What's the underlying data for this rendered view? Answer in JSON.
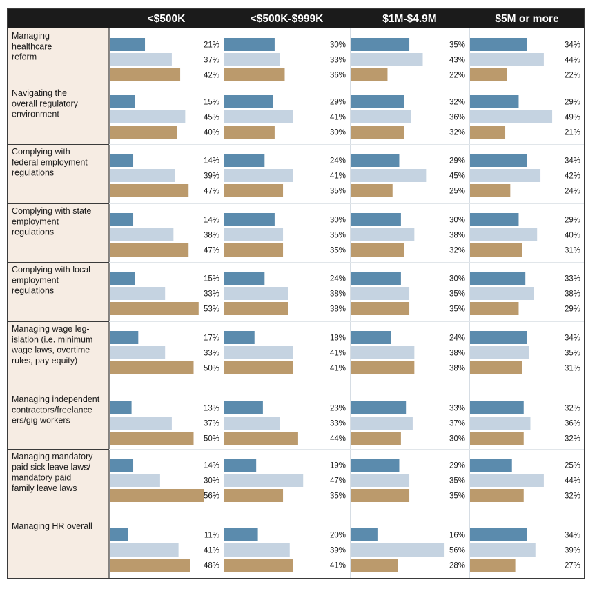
{
  "chart_data": {
    "type": "bar",
    "orientation": "horizontal",
    "columns": [
      "<$500K",
      "<$500K-$999K",
      "$1M-$4.9M",
      "$5M or more"
    ],
    "categories": [
      [
        "Managing",
        "healthcare",
        "reform"
      ],
      [
        "Navigating the",
        "overall regulatory",
        "environment"
      ],
      [
        "Complying with",
        "federal employment",
        "regulations"
      ],
      [
        "Complying with state",
        "employment",
        "regulations"
      ],
      [
        "Complying with local",
        "employment",
        "regulations"
      ],
      [
        "Managing wage leg-",
        "islation (i.e. minimum",
        "wage laws, overtime",
        "rules, pay equity)"
      ],
      [
        "Managing independent",
        "contractors/freelance",
        "ers/gig workers"
      ],
      [
        "Managing mandatory",
        "paid sick leave laws/",
        "mandatory paid",
        "family leave laws"
      ],
      [
        "Managing HR overall"
      ]
    ],
    "series": [
      {
        "name": "series-1",
        "color": "#5b8bad"
      },
      {
        "name": "series-2",
        "color": "#c5d3e1"
      },
      {
        "name": "series-3",
        "color": "#bb9a6c"
      }
    ],
    "values": [
      [
        [
          21,
          37,
          42
        ],
        [
          30,
          33,
          36
        ],
        [
          35,
          43,
          22
        ],
        [
          34,
          44,
          22
        ]
      ],
      [
        [
          15,
          45,
          40
        ],
        [
          29,
          41,
          30
        ],
        [
          32,
          36,
          32
        ],
        [
          29,
          49,
          21
        ]
      ],
      [
        [
          14,
          39,
          47
        ],
        [
          24,
          41,
          35
        ],
        [
          29,
          45,
          25
        ],
        [
          34,
          42,
          24
        ]
      ],
      [
        [
          14,
          38,
          47
        ],
        [
          30,
          35,
          35
        ],
        [
          30,
          38,
          32
        ],
        [
          29,
          40,
          31
        ]
      ],
      [
        [
          15,
          33,
          53
        ],
        [
          24,
          38,
          38
        ],
        [
          30,
          35,
          35
        ],
        [
          33,
          38,
          29
        ]
      ],
      [
        [
          17,
          33,
          50
        ],
        [
          18,
          41,
          41
        ],
        [
          24,
          38,
          38
        ],
        [
          34,
          35,
          31
        ]
      ],
      [
        [
          13,
          37,
          50
        ],
        [
          23,
          33,
          44
        ],
        [
          33,
          37,
          30
        ],
        [
          32,
          36,
          32
        ]
      ],
      [
        [
          14,
          30,
          56
        ],
        [
          19,
          47,
          35
        ],
        [
          29,
          35,
          35
        ],
        [
          25,
          44,
          32
        ]
      ],
      [
        [
          11,
          41,
          48
        ],
        [
          20,
          39,
          41
        ],
        [
          16,
          56,
          28
        ],
        [
          34,
          39,
          27
        ]
      ]
    ],
    "value_suffix": "%",
    "header_color": "#1b1b1b",
    "label_bg_color": "#f6ece3"
  }
}
